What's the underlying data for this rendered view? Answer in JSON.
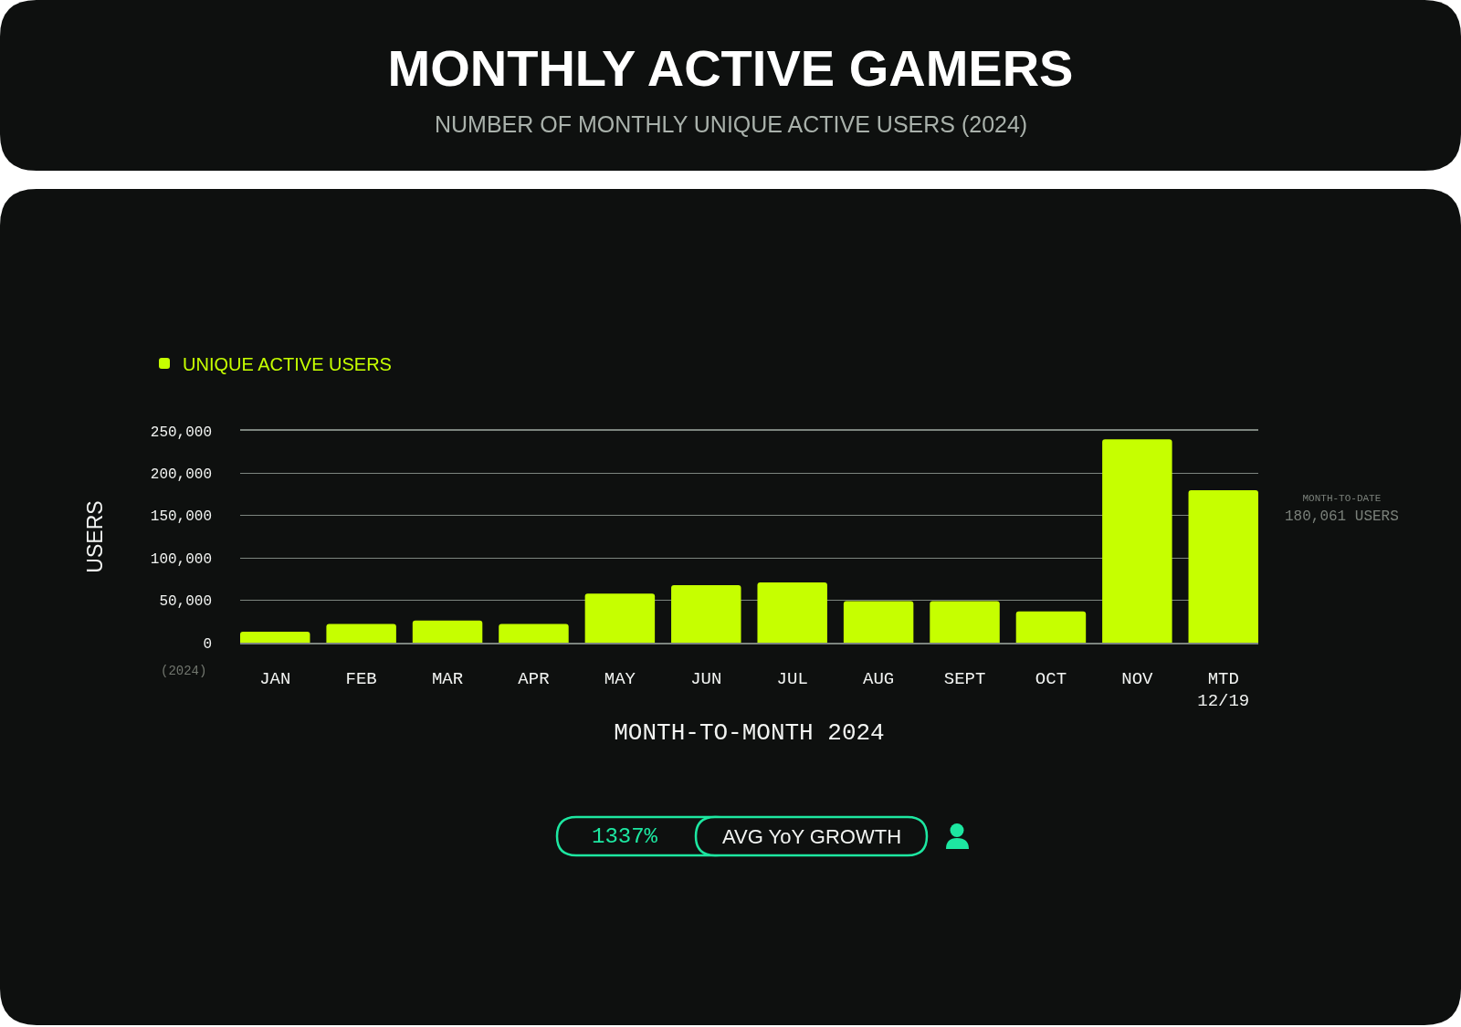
{
  "chart_data": {
    "type": "bar",
    "title": "MONTHLY ACTIVE GAMERS",
    "subtitle": "NUMBER OF MONTHLY UNIQUE ACTIVE USERS (2024)",
    "xlabel": "MONTH-TO-MONTH 2024",
    "ylabel": "USERS",
    "categories": [
      "JAN",
      "FEB",
      "MAR",
      "APR",
      "MAY",
      "JUN",
      "JUL",
      "AUG",
      "SEPT",
      "OCT",
      "NOV",
      "MTD\n12/19"
    ],
    "series": [
      {
        "name": "UNIQUE ACTIVE USERS",
        "color": "#c6ff00",
        "values": [
          13000,
          22000,
          26000,
          22000,
          58000,
          68000,
          71000,
          49000,
          49000,
          37000,
          240000,
          180000
        ]
      }
    ],
    "ylim": [
      0,
      250000
    ],
    "yticks": [
      0,
      {
        "value": 50000,
        "label": "50,000"
      },
      {
        "value": 100000,
        "label": "100,000"
      },
      {
        "value": 150000,
        "label": "150,000"
      },
      {
        "value": 200000,
        "label": "200,000"
      },
      {
        "value": 250000,
        "label": "250,000"
      }
    ],
    "grid": "y",
    "legend": "top left",
    "annotations": [
      "(2024)",
      "MONTH-TO-DATE\n180,061 USERS",
      "1337%",
      "AVG YoY GROWTH"
    ]
  }
}
